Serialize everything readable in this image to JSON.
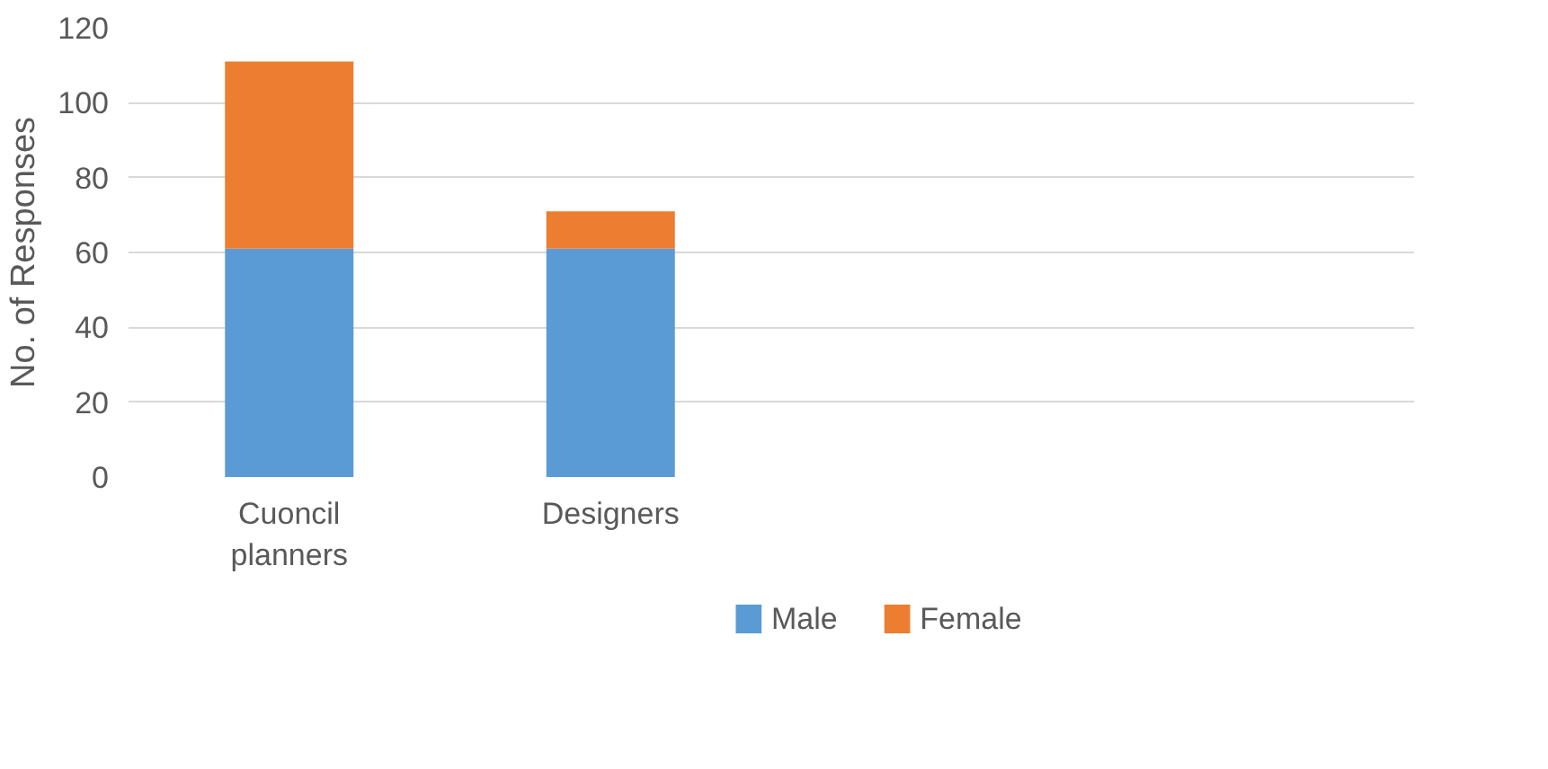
{
  "chart_data": {
    "type": "bar",
    "stacked": true,
    "ylabel": "No. of Responses",
    "categories": [
      "Cuoncil planners",
      "Designers",
      null,
      null
    ],
    "series": [
      {
        "name": "Male",
        "color": "#5b9bd5",
        "values": [
          61,
          61,
          null,
          null
        ]
      },
      {
        "name": "Female",
        "color": "#ed7d31",
        "values": [
          50,
          10,
          null,
          null
        ]
      }
    ],
    "ylim": [
      0,
      120
    ],
    "yticks": [
      0,
      20,
      40,
      60,
      80,
      100,
      120
    ],
    "grid": "y",
    "legend": "bottom"
  }
}
